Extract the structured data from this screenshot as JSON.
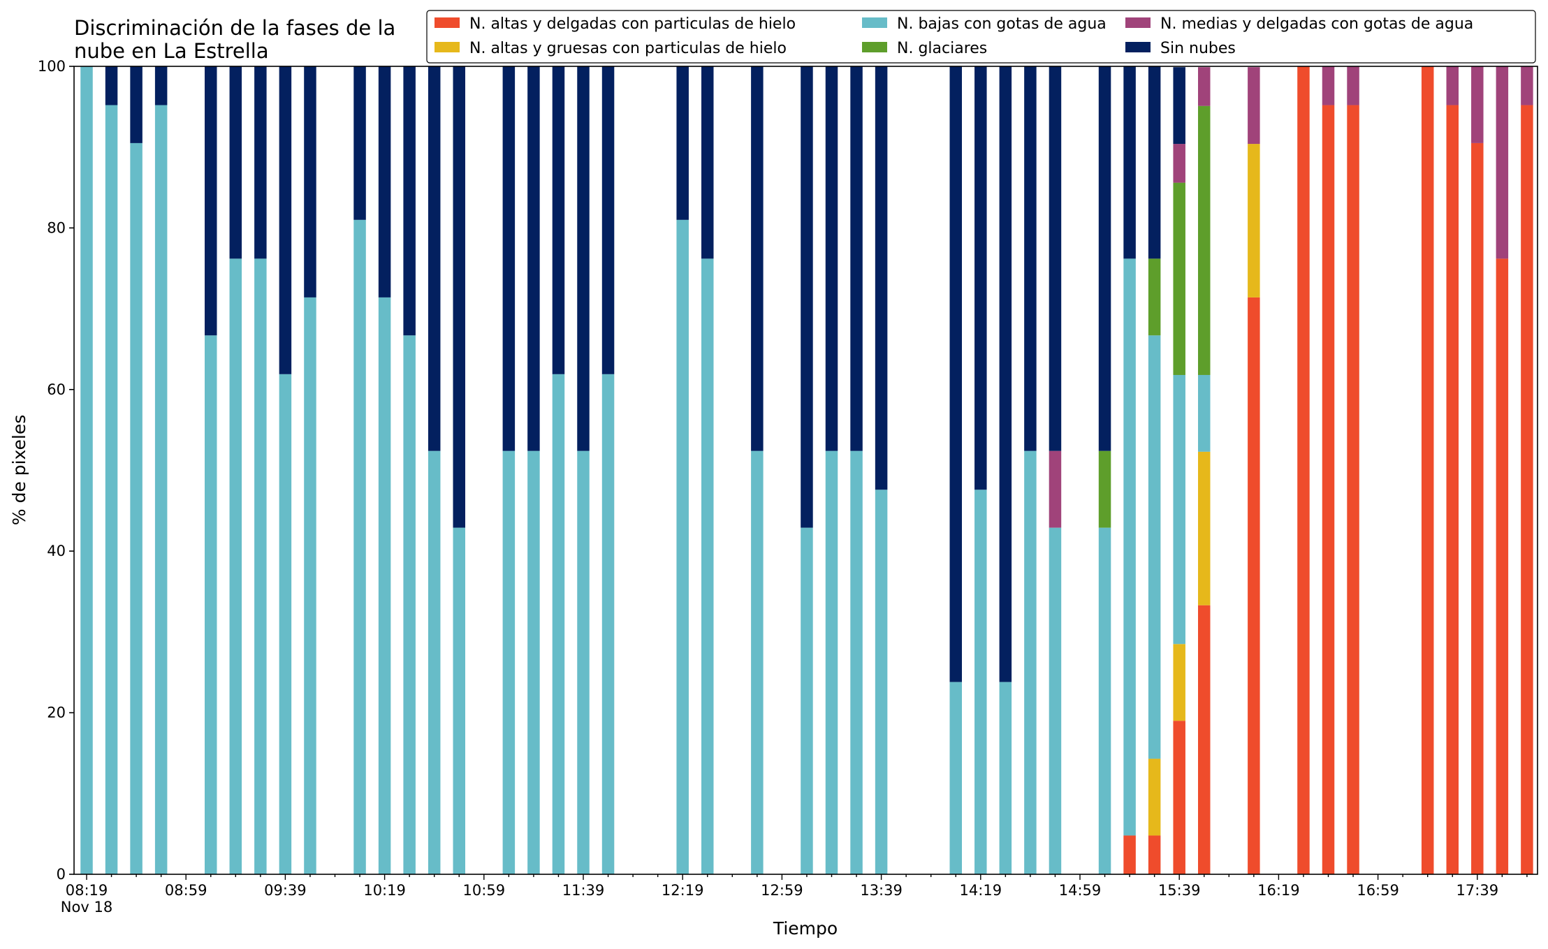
{
  "chart_data": {
    "type": "bar",
    "stacked": true,
    "title": "Discriminación de la fases de la\nnube en La Estrella",
    "xlabel": "Tiempo",
    "ylabel": "% de pixeles",
    "ylim": [
      0,
      100
    ],
    "yticks": [
      0,
      20,
      40,
      60,
      80,
      100
    ],
    "x_tick_labels": [
      "08:19",
      "08:59",
      "09:39",
      "10:19",
      "10:59",
      "11:39",
      "12:19",
      "12:59",
      "13:39",
      "14:19",
      "14:59",
      "15:39",
      "16:19",
      "16:59",
      "17:39"
    ],
    "x_tick_sublabel": "Nov 18",
    "grid": false,
    "legend_position": "top-right",
    "categories": [
      "08:19",
      "08:29",
      "08:39",
      "08:49",
      "08:59",
      "09:09",
      "09:19",
      "09:29",
      "09:39",
      "09:49",
      "09:59",
      "10:09",
      "10:19",
      "10:29",
      "10:39",
      "10:49",
      "10:59",
      "11:09",
      "11:19",
      "11:29",
      "11:39",
      "11:49",
      "11:59",
      "12:09",
      "12:19",
      "12:29",
      "12:39",
      "12:49",
      "12:59",
      "13:09",
      "13:19",
      "13:29",
      "13:39",
      "13:49",
      "13:59",
      "14:09",
      "14:19",
      "14:29",
      "14:39",
      "14:49",
      "14:59",
      "15:09",
      "15:19",
      "15:29",
      "15:39",
      "15:49",
      "15:59",
      "16:09",
      "16:19",
      "16:29",
      "16:39",
      "16:49",
      "16:59",
      "17:09",
      "17:19",
      "17:29",
      "17:39",
      "17:49",
      "17:59"
    ],
    "series": [
      {
        "name": "N. altas y delgadas con particulas de hielo",
        "color": "#ef4c2c",
        "values": [
          0,
          0,
          0,
          0,
          0,
          0,
          0,
          0,
          0,
          0,
          0,
          0,
          0,
          0,
          0,
          0,
          0,
          0,
          0,
          0,
          0,
          0,
          0,
          0,
          0,
          0,
          0,
          0,
          0,
          0,
          0,
          0,
          0,
          0,
          0,
          0,
          0,
          0,
          0,
          0,
          0,
          0,
          4.8,
          4.8,
          19,
          33.3,
          0,
          71.4,
          0,
          100,
          95.2,
          95.2,
          0,
          0,
          100,
          95.2,
          90.5,
          76.2,
          95.2
        ]
      },
      {
        "name": "N. altas y gruesas con particulas de hielo",
        "color": "#e6b81b",
        "values": [
          0,
          0,
          0,
          0,
          0,
          0,
          0,
          0,
          0,
          0,
          0,
          0,
          0,
          0,
          0,
          0,
          0,
          0,
          0,
          0,
          0,
          0,
          0,
          0,
          0,
          0,
          0,
          0,
          0,
          0,
          0,
          0,
          0,
          0,
          0,
          0,
          0,
          0,
          0,
          0,
          0,
          0,
          0,
          9.5,
          9.5,
          19,
          0,
          19,
          0,
          0,
          0,
          0,
          0,
          0,
          0,
          0,
          0,
          0,
          0
        ]
      },
      {
        "name": "N. bajas con gotas de agua",
        "color": "#67bcc8",
        "values": [
          100,
          95.2,
          90.5,
          95.2,
          0,
          66.7,
          76.2,
          76.2,
          61.9,
          71.4,
          0,
          81,
          71.4,
          66.7,
          52.4,
          42.9,
          0,
          52.4,
          52.4,
          61.9,
          52.4,
          61.9,
          0,
          0,
          81,
          76.2,
          0,
          52.4,
          0,
          42.9,
          52.4,
          52.4,
          47.6,
          0,
          0,
          23.8,
          47.6,
          23.8,
          52.4,
          42.9,
          0,
          42.9,
          71.4,
          52.4,
          33.3,
          9.5,
          0,
          0,
          0,
          0,
          0,
          0,
          0,
          0,
          0,
          0,
          0,
          0,
          0
        ]
      },
      {
        "name": "N. glaciares",
        "color": "#5e9e2b",
        "values": [
          0,
          0,
          0,
          0,
          0,
          0,
          0,
          0,
          0,
          0,
          0,
          0,
          0,
          0,
          0,
          0,
          0,
          0,
          0,
          0,
          0,
          0,
          0,
          0,
          0,
          0,
          0,
          0,
          0,
          0,
          0,
          0,
          0,
          0,
          0,
          0,
          0,
          0,
          0,
          0,
          0,
          9.5,
          0,
          9.5,
          23.8,
          33.3,
          0,
          0,
          0,
          0,
          0,
          0,
          0,
          0,
          0,
          0,
          0,
          0,
          0
        ]
      },
      {
        "name": "N. medias y delgadas con gotas de agua",
        "color": "#a0437a",
        "values": [
          0,
          0,
          0,
          0,
          0,
          0,
          0,
          0,
          0,
          0,
          0,
          0,
          0,
          0,
          0,
          0,
          0,
          0,
          0,
          0,
          0,
          0,
          0,
          0,
          0,
          0,
          0,
          0,
          0,
          0,
          0,
          0,
          0,
          0,
          0,
          0,
          0,
          0,
          0,
          9.5,
          0,
          0,
          0,
          0,
          4.8,
          4.8,
          0,
          9.5,
          0,
          0,
          4.8,
          4.8,
          0,
          0,
          0,
          4.8,
          9.5,
          23.8,
          4.8
        ]
      },
      {
        "name": "Sin nubes",
        "color": "#03205f",
        "values": [
          0,
          4.8,
          9.5,
          4.8,
          0,
          33.3,
          23.8,
          23.8,
          38.1,
          28.6,
          0,
          19,
          28.6,
          33.3,
          47.6,
          57.1,
          0,
          47.6,
          47.6,
          38.1,
          47.6,
          38.1,
          0,
          0,
          19,
          23.8,
          0,
          47.6,
          0,
          57.1,
          47.6,
          47.6,
          52.4,
          0,
          0,
          76.2,
          52.4,
          76.2,
          47.6,
          47.6,
          0,
          47.6,
          23.8,
          23.8,
          9.5,
          0,
          0,
          0,
          0,
          0,
          0,
          0,
          0,
          0,
          0,
          0,
          0,
          0,
          0
        ]
      }
    ]
  }
}
